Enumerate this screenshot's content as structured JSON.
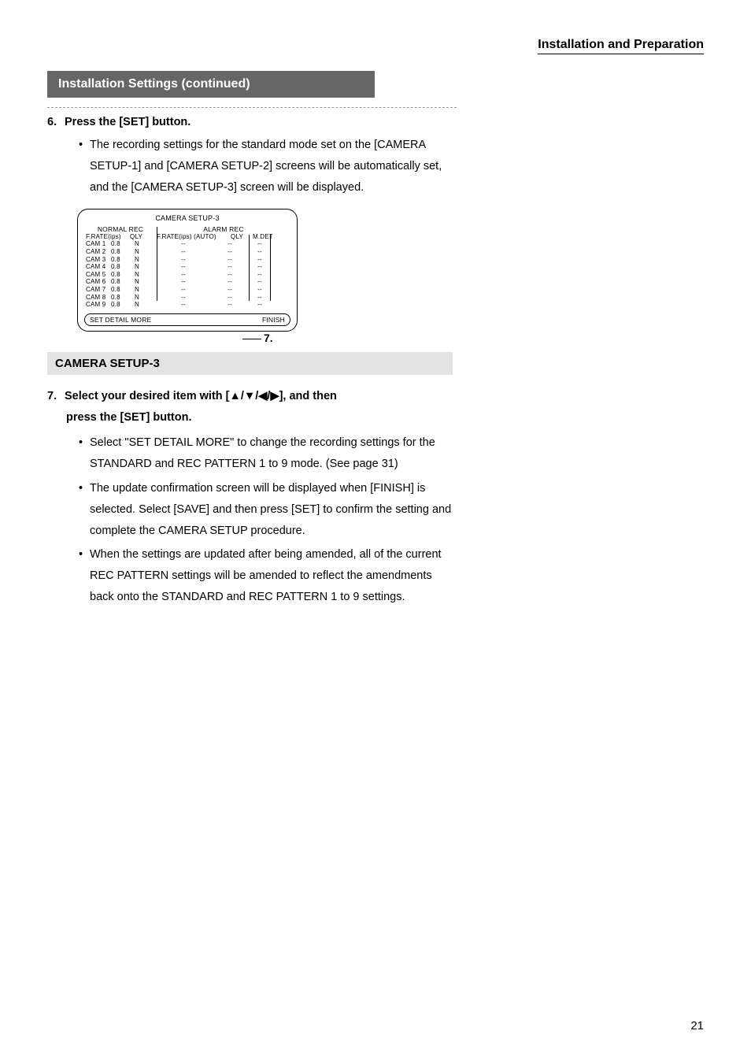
{
  "header": {
    "section": "Installation and Preparation"
  },
  "titleBar": {
    "text": "Installation Settings (continued)"
  },
  "step6": {
    "num": "6.",
    "text": "Press the [SET] button.",
    "bullets": [
      "The recording settings for the standard mode set on the [CAMERA SETUP-1] and [CAMERA SETUP-2] screens will be automatically set, and the [CAMERA SETUP-3] screen will be displayed."
    ]
  },
  "screen": {
    "title": "CAMERA SETUP-3",
    "normalLabel": "NORMAL REC",
    "alarmLabel": "ALARM REC",
    "normalSub1": "F.RATE(ips)",
    "normalSub2": "QLY",
    "alarmSub1": "F.RATE(ips) (AUTO)",
    "alarmSub2": "QLY",
    "mdet": "M.DET",
    "rows": [
      {
        "cam": "CAM 1",
        "rate": "0.8",
        "qly": "N",
        "arate": "--",
        "aqly": "--",
        "mdet": "--"
      },
      {
        "cam": "CAM 2",
        "rate": "0.8",
        "qly": "N",
        "arate": "--",
        "aqly": "--",
        "mdet": "--"
      },
      {
        "cam": "CAM 3",
        "rate": "0.8",
        "qly": "N",
        "arate": "--",
        "aqly": "--",
        "mdet": "--"
      },
      {
        "cam": "CAM 4",
        "rate": "0.8",
        "qly": "N",
        "arate": "--",
        "aqly": "--",
        "mdet": "--"
      },
      {
        "cam": "CAM 5",
        "rate": "0.8",
        "qly": "N",
        "arate": "--",
        "aqly": "--",
        "mdet": "--"
      },
      {
        "cam": "CAM 6",
        "rate": "0.8",
        "qly": "N",
        "arate": "--",
        "aqly": "--",
        "mdet": "--"
      },
      {
        "cam": "CAM 7",
        "rate": "0.8",
        "qly": "N",
        "arate": "--",
        "aqly": "--",
        "mdet": "--"
      },
      {
        "cam": "CAM 8",
        "rate": "0.8",
        "qly": "N",
        "arate": "--",
        "aqly": "--",
        "mdet": "--"
      },
      {
        "cam": "CAM 9",
        "rate": "0.8",
        "qly": "N",
        "arate": "--",
        "aqly": "--",
        "mdet": "--"
      }
    ],
    "btnLeft": "SET DETAIL MORE",
    "btnRight": "FINISH"
  },
  "callout": {
    "num": "7."
  },
  "subsection": {
    "title": "CAMERA SETUP-3"
  },
  "step7": {
    "num": "7.",
    "line1": "Select your desired item with [▲/▼/◀/▶], and then",
    "line2": "press the [SET] button.",
    "bullets": [
      "Select \"SET DETAIL MORE\" to change the recording settings for the STANDARD and REC PATTERN 1 to 9 mode. (See page 31)",
      "The update confirmation screen will be displayed when [FINISH] is selected. Select [SAVE] and then press [SET] to confirm the setting and complete the CAMERA SETUP procedure.",
      "When the settings are updated after being amended, all of the current REC PATTERN settings will be amended to reflect the amendments back onto the STANDARD and REC PATTERN 1 to 9 settings."
    ]
  },
  "pageNumber": "21"
}
